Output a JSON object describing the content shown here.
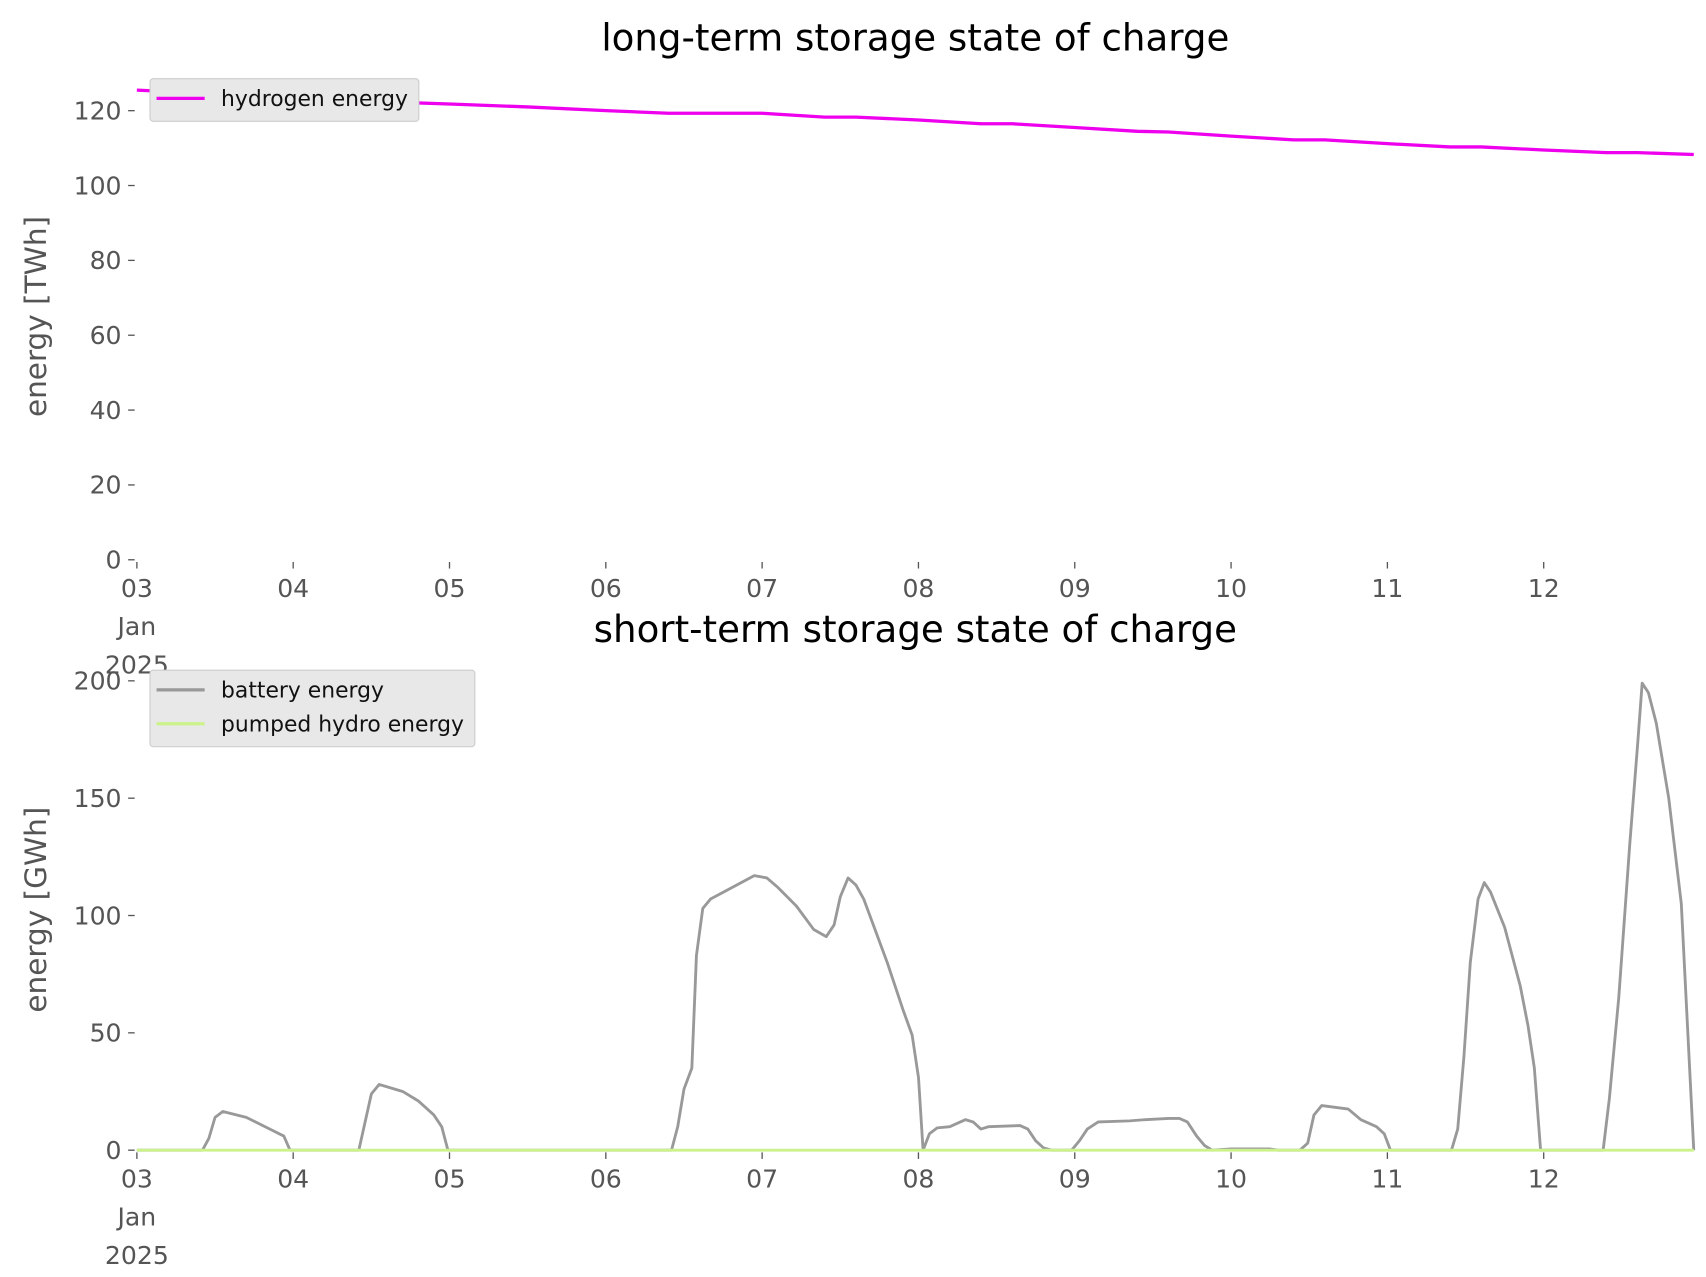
{
  "chart_data": [
    {
      "type": "line",
      "title": "long-term storage state of charge",
      "y_label": "energy [TWh]",
      "xlim": [
        3,
        12.96
      ],
      "xticks": [
        {
          "value": 3,
          "label": "03\nJan\n2025"
        },
        {
          "value": 4,
          "label": "04"
        },
        {
          "value": 5,
          "label": "05"
        },
        {
          "value": 6,
          "label": "06"
        },
        {
          "value": 7,
          "label": "07"
        },
        {
          "value": 8,
          "label": "08"
        },
        {
          "value": 9,
          "label": "09"
        },
        {
          "value": 10,
          "label": "10"
        },
        {
          "value": 11,
          "label": "11"
        },
        {
          "value": 12,
          "label": "12"
        }
      ],
      "ylim": [
        0,
        130
      ],
      "yticks": [
        0,
        20,
        40,
        60,
        80,
        100,
        120
      ],
      "legend": "upper left",
      "series": [
        {
          "name": "hydrogen energy",
          "color": "#ee00ee",
          "x": [
            3,
            3.5,
            4,
            4.5,
            5,
            5.5,
            6,
            6.4,
            7,
            7.4,
            7.6,
            8,
            8.4,
            8.6,
            9,
            9.4,
            9.6,
            10,
            10.4,
            10.6,
            11,
            11.4,
            11.6,
            12,
            12.4,
            12.6,
            12.96
          ],
          "values": [
            125.5,
            124.5,
            123.5,
            122.5,
            121.8,
            121,
            120,
            119.3,
            119.3,
            118.3,
            118.3,
            117.5,
            116.5,
            116.5,
            115.5,
            114.5,
            114.3,
            113.2,
            112.2,
            112.2,
            111.2,
            110.3,
            110.3,
            109.5,
            108.8,
            108.8,
            108.3
          ]
        }
      ]
    },
    {
      "type": "line",
      "title": "short-term storage state of charge",
      "y_label": "energy [GWh]",
      "xlim": [
        3,
        12.96
      ],
      "xticks": [
        {
          "value": 3,
          "label": "03\nJan\n2025"
        },
        {
          "value": 4,
          "label": "04"
        },
        {
          "value": 5,
          "label": "05"
        },
        {
          "value": 6,
          "label": "06"
        },
        {
          "value": 7,
          "label": "07"
        },
        {
          "value": 8,
          "label": "08"
        },
        {
          "value": 9,
          "label": "09"
        },
        {
          "value": 10,
          "label": "10"
        },
        {
          "value": 11,
          "label": "11"
        },
        {
          "value": 12,
          "label": "12"
        }
      ],
      "ylim": [
        0,
        205
      ],
      "yticks": [
        0,
        50,
        100,
        150,
        200
      ],
      "legend": "upper left",
      "series": [
        {
          "name": "battery energy",
          "color": "#999999",
          "x": [
            3,
            3.42,
            3.46,
            3.5,
            3.55,
            3.7,
            3.88,
            3.94,
            3.98,
            4.42,
            4.5,
            4.55,
            4.7,
            4.8,
            4.9,
            4.95,
            4.99,
            6.42,
            6.46,
            6.5,
            6.55,
            6.58,
            6.62,
            6.67,
            6.95,
            7.03,
            7.1,
            7.22,
            7.33,
            7.41,
            7.46,
            7.5,
            7.55,
            7.6,
            7.65,
            7.7,
            7.8,
            7.9,
            7.96,
            8.0,
            8.03,
            8.07,
            8.12,
            8.2,
            8.3,
            8.35,
            8.4,
            8.45,
            8.65,
            8.7,
            8.75,
            8.8,
            8.85,
            8.98,
            9.03,
            9.08,
            9.15,
            9.35,
            9.45,
            9.6,
            9.67,
            9.72,
            9.78,
            9.83,
            9.88,
            10.0,
            10.25,
            10.3,
            10.44,
            10.49,
            10.53,
            10.58,
            10.75,
            10.83,
            10.93,
            10.98,
            11.02,
            11.41,
            11.45,
            11.49,
            11.53,
            11.58,
            11.62,
            11.66,
            11.75,
            11.85,
            11.9,
            11.94,
            11.98,
            12.38,
            12.42,
            12.48,
            12.55,
            12.6,
            12.63,
            12.67,
            12.72,
            12.8,
            12.88,
            12.96
          ],
          "values": [
            0,
            0,
            5,
            14,
            16.5,
            14,
            8,
            6,
            0,
            0,
            24,
            28,
            25,
            21,
            15,
            10,
            0,
            0,
            10,
            26,
            35,
            83,
            103,
            107,
            117,
            116,
            112,
            104,
            94,
            91,
            96,
            108,
            116,
            113,
            107,
            98,
            80,
            60,
            49,
            31,
            0,
            7,
            9.5,
            10,
            13,
            12,
            9,
            10,
            10.5,
            9,
            4,
            1,
            0,
            0,
            4,
            9,
            12,
            12.5,
            13,
            13.5,
            13.5,
            12,
            6,
            2,
            0,
            0.5,
            0.5,
            0,
            0,
            3,
            15,
            19,
            17.5,
            13,
            10,
            7,
            0,
            0,
            9,
            40,
            80,
            107,
            114,
            110,
            95,
            70,
            53,
            35,
            0,
            0,
            22,
            65,
            130,
            172,
            199,
            195,
            182,
            150,
            105,
            0
          ]
        },
        {
          "name": "pumped hydro energy",
          "color": "#ccf28c",
          "x": [
            3,
            12.96
          ],
          "values": [
            0,
            0
          ]
        }
      ]
    }
  ]
}
